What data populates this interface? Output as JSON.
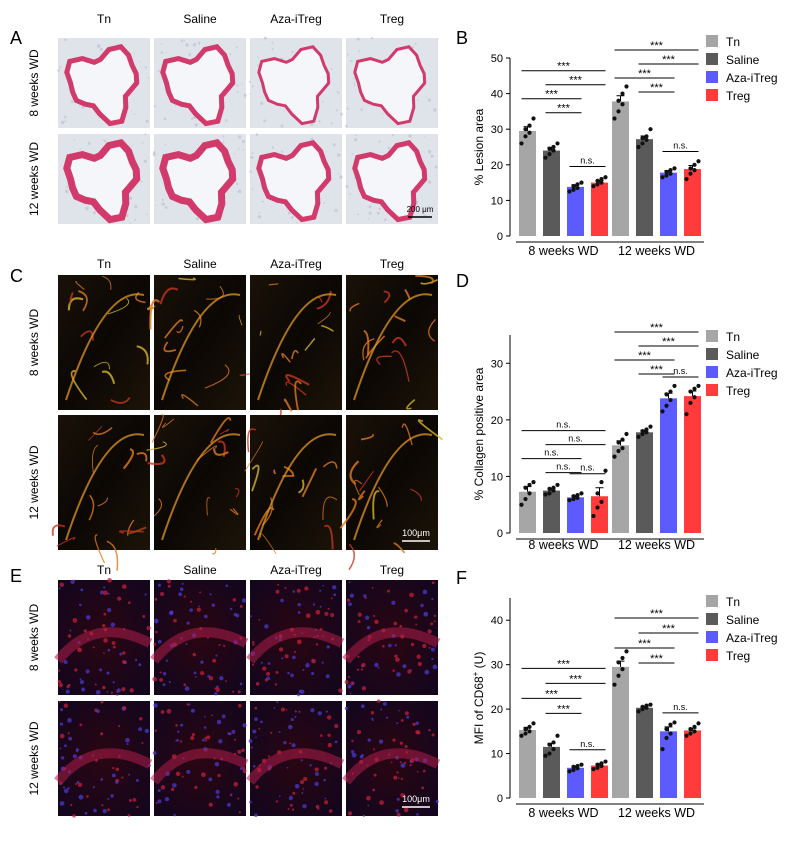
{
  "colors": {
    "Tn": "#a6a6a6",
    "Saline": "#5a5a5a",
    "Aza-iTreg": "#5b5bff",
    "Treg": "#ff3b3b"
  },
  "micrographs": [
    {
      "panel": "A",
      "columns": [
        "Tn",
        "Saline",
        "Aza-iTreg",
        "Treg"
      ],
      "rows": [
        "8 weeks WD",
        "12 weeks WD"
      ],
      "stain": "oil-red-o",
      "scale_bar": "200 μm"
    },
    {
      "panel": "C",
      "columns": [
        "Tn",
        "Saline",
        "Aza-iTreg",
        "Treg"
      ],
      "rows": [
        "8 weeks WD",
        "12 weeks WD"
      ],
      "stain": "picrosirius",
      "scale_bar": "100μm"
    },
    {
      "panel": "E",
      "columns": [
        "Tn",
        "Saline",
        "Aza-iTreg",
        "Treg"
      ],
      "rows": [
        "8 weeks WD",
        "12 weeks WD"
      ],
      "stain": "cd68-if",
      "scale_bar": "100μm"
    }
  ],
  "chart_data": [
    {
      "panel": "B",
      "type": "bar",
      "ylabel": "% Lesion area",
      "ylim": [
        0,
        50
      ],
      "yticks": [
        0,
        10,
        20,
        30,
        40,
        50
      ],
      "groups": [
        "8 weeks WD",
        "12 weeks WD"
      ],
      "series": [
        {
          "name": "Tn",
          "values": [
            29.5,
            37.8
          ],
          "err": [
            1.2,
            1.6
          ],
          "points": [
            [
              26,
              28,
              29,
              30,
              31,
              33
            ],
            [
              33,
              35,
              37,
              38,
              40,
              42
            ]
          ]
        },
        {
          "name": "Saline",
          "values": [
            24.0,
            27.2
          ],
          "err": [
            0.9,
            0.9
          ],
          "points": [
            [
              22,
              23,
              24,
              24.5,
              25,
              26
            ],
            [
              25,
              26,
              27,
              27.5,
              28,
              30
            ]
          ]
        },
        {
          "name": "Aza-iTreg",
          "values": [
            13.8,
            17.8
          ],
          "err": [
            0.6,
            0.6
          ],
          "points": [
            [
              12.5,
              13,
              13.5,
              14,
              14.5,
              15
            ],
            [
              16.5,
              17,
              17.5,
              18,
              18.5,
              19
            ]
          ]
        },
        {
          "name": "Treg",
          "values": [
            15.0,
            18.8
          ],
          "err": [
            0.6,
            1.0
          ],
          "points": [
            [
              14,
              14.5,
              15,
              15.5,
              16,
              16.5
            ],
            [
              16,
              17.5,
              18.5,
              19,
              20,
              21
            ]
          ]
        }
      ],
      "comparisons": [
        {
          "group": 0,
          "from": 0,
          "to": 3,
          "label": "***"
        },
        {
          "group": 0,
          "from": 1,
          "to": 3,
          "label": "***"
        },
        {
          "group": 0,
          "from": 0,
          "to": 2,
          "label": "***"
        },
        {
          "group": 0,
          "from": 1,
          "to": 2,
          "label": "***"
        },
        {
          "group": 0,
          "from": 2,
          "to": 3,
          "label": "n.s."
        },
        {
          "group": 1,
          "from": 0,
          "to": 3,
          "label": "***"
        },
        {
          "group": 1,
          "from": 1,
          "to": 3,
          "label": "***"
        },
        {
          "group": 1,
          "from": 0,
          "to": 2,
          "label": "***"
        },
        {
          "group": 1,
          "from": 1,
          "to": 2,
          "label": "***"
        },
        {
          "group": 1,
          "from": 2,
          "to": 3,
          "label": "n.s."
        }
      ]
    },
    {
      "panel": "D",
      "type": "bar",
      "ylabel": "% Collagen positive area",
      "ylim": [
        0,
        35
      ],
      "yticks": [
        0,
        10,
        20,
        30
      ],
      "groups": [
        "8 weeks WD",
        "12 weeks WD"
      ],
      "series": [
        {
          "name": "Tn",
          "values": [
            7.3,
            15.5
          ],
          "err": [
            0.9,
            0.8
          ],
          "points": [
            [
              5,
              6,
              7,
              8,
              8.5,
              9
            ],
            [
              13.5,
              14.5,
              15,
              16,
              16.5,
              17.5
            ]
          ]
        },
        {
          "name": "Saline",
          "values": [
            7.5,
            17.8
          ],
          "err": [
            0.4,
            0.4
          ],
          "points": [
            [
              6.8,
              7,
              7.5,
              7.8,
              8,
              8.5
            ],
            [
              17,
              17.5,
              17.8,
              18,
              18.3,
              18.8
            ]
          ]
        },
        {
          "name": "Aza-iTreg",
          "values": [
            6.3,
            23.8
          ],
          "err": [
            0.3,
            0.9
          ],
          "points": [
            [
              5.8,
              6,
              6.2,
              6.5,
              6.7,
              7
            ],
            [
              21.5,
              22.5,
              23.5,
              24.5,
              25,
              26
            ]
          ]
        },
        {
          "name": "Treg",
          "values": [
            6.5,
            24.2
          ],
          "err": [
            1.5,
            0.9
          ],
          "points": [
            [
              3,
              4.5,
              5.5,
              7,
              9,
              11
            ],
            [
              21,
              23,
              24,
              25,
              25.5,
              26
            ]
          ]
        }
      ],
      "comparisons": [
        {
          "group": 0,
          "from": 0,
          "to": 3,
          "label": "n.s."
        },
        {
          "group": 0,
          "from": 1,
          "to": 3,
          "label": "n.s."
        },
        {
          "group": 0,
          "from": 0,
          "to": 2,
          "label": "n.s."
        },
        {
          "group": 0,
          "from": 1,
          "to": 2,
          "label": "n.s."
        },
        {
          "group": 0,
          "from": 2,
          "to": 3,
          "label": "n.s."
        },
        {
          "group": 1,
          "from": 0,
          "to": 3,
          "label": "***"
        },
        {
          "group": 1,
          "from": 1,
          "to": 3,
          "label": "***"
        },
        {
          "group": 1,
          "from": 0,
          "to": 2,
          "label": "***"
        },
        {
          "group": 1,
          "from": 1,
          "to": 2,
          "label": "***"
        },
        {
          "group": 1,
          "from": 2,
          "to": 3,
          "label": "n.s."
        }
      ]
    },
    {
      "panel": "F",
      "type": "bar",
      "ylabel_main": "MFI of CD68",
      "ylabel_sup": "+",
      "ylabel_tail": " (U)",
      "ylim": [
        0,
        45
      ],
      "yticks": [
        0,
        10,
        20,
        30,
        40
      ],
      "groups": [
        "8 weeks WD",
        "12 weeks WD"
      ],
      "series": [
        {
          "name": "Tn",
          "values": [
            15.3,
            29.5
          ],
          "err": [
            0.6,
            1.3
          ],
          "points": [
            [
              14,
              14.5,
              15,
              15.5,
              16,
              16.8
            ],
            [
              25.5,
              27.5,
              29,
              30.5,
              31.5,
              33
            ]
          ]
        },
        {
          "name": "Saline",
          "values": [
            11.5,
            20.3
          ],
          "err": [
            0.8,
            0.3
          ],
          "points": [
            [
              9.5,
              10,
              11,
              12,
              12.5,
              14
            ],
            [
              19.5,
              20,
              20.3,
              20.5,
              20.8,
              21
            ]
          ]
        },
        {
          "name": "Aza-iTreg",
          "values": [
            6.8,
            15.0
          ],
          "err": [
            0.4,
            1.0
          ],
          "points": [
            [
              6,
              6.3,
              6.7,
              7,
              7.2,
              7.5
            ],
            [
              11,
              13.5,
              14.5,
              15.5,
              16.5,
              17
            ]
          ]
        },
        {
          "name": "Treg",
          "values": [
            7.3,
            15.2
          ],
          "err": [
            0.4,
            0.5
          ],
          "points": [
            [
              6.5,
              6.8,
              7.2,
              7.5,
              7.8,
              8.2
            ],
            [
              14,
              14.5,
              15,
              15.5,
              16,
              16.8
            ]
          ]
        }
      ],
      "comparisons": [
        {
          "group": 0,
          "from": 0,
          "to": 3,
          "label": "***"
        },
        {
          "group": 0,
          "from": 1,
          "to": 3,
          "label": "***"
        },
        {
          "group": 0,
          "from": 0,
          "to": 2,
          "label": "***"
        },
        {
          "group": 0,
          "from": 1,
          "to": 2,
          "label": "***"
        },
        {
          "group": 0,
          "from": 2,
          "to": 3,
          "label": "n.s."
        },
        {
          "group": 1,
          "from": 0,
          "to": 3,
          "label": "***"
        },
        {
          "group": 1,
          "from": 1,
          "to": 3,
          "label": "***"
        },
        {
          "group": 1,
          "from": 0,
          "to": 2,
          "label": "***"
        },
        {
          "group": 1,
          "from": 1,
          "to": 2,
          "label": "***"
        },
        {
          "group": 1,
          "from": 2,
          "to": 3,
          "label": "n.s."
        }
      ]
    }
  ]
}
